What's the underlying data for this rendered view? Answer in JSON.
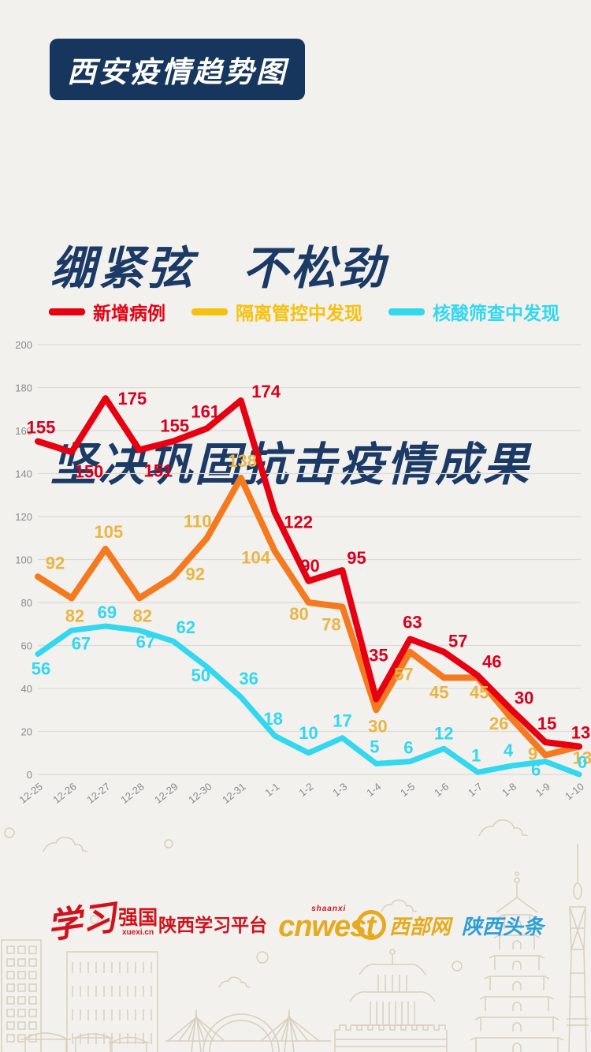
{
  "page": {
    "badge": "西安疫情趋势图",
    "heading_line1": "绷紧弦　不松劲",
    "heading_line2": "坚决巩固抗击疫情成果"
  },
  "colors": {
    "background": "#f2f1ee",
    "navy": "#17365e",
    "red": "#e60012",
    "red_label": "#d7001e",
    "orange_line": "#f5791f",
    "gold_swatch": "#f6c10e",
    "gold_label": "#e9b544",
    "cyan": "#32d7f0",
    "grid": "#dcdbd8",
    "axis_text": "#8a8a8a"
  },
  "chart_data": {
    "type": "line",
    "categories": [
      "12-25",
      "12-26",
      "12-27",
      "12-28",
      "12-29",
      "12-30",
      "12-31",
      "1-1",
      "1-2",
      "1-3",
      "1-4",
      "1-5",
      "1-6",
      "1-7",
      "1-8",
      "1-9",
      "1-10"
    ],
    "series": [
      {
        "name": "新增病例",
        "line_color": "#e60012",
        "legend_color": "#e60012",
        "label_color": "#d7001e",
        "values": [
          155,
          150,
          175,
          151,
          155,
          161,
          174,
          122,
          90,
          95,
          35,
          63,
          57,
          46,
          30,
          15,
          13
        ]
      },
      {
        "name": "隔离管控中发现",
        "line_color": "#f5791f",
        "legend_color": "#f6c10e",
        "label_color": "#e9b544",
        "values": [
          92,
          82,
          105,
          82,
          92,
          110,
          138,
          104,
          80,
          78,
          30,
          57,
          45,
          45,
          26,
          9,
          13
        ]
      },
      {
        "name": "核酸筛查中发现",
        "line_color": "#32d7f0",
        "legend_color": "#32d7f0",
        "label_color": "#32d7f0",
        "values": [
          56,
          67,
          69,
          67,
          62,
          50,
          36,
          18,
          10,
          17,
          5,
          6,
          12,
          1,
          4,
          6,
          0
        ]
      }
    ],
    "ylim": [
      0,
      200
    ],
    "ytick_step": 20,
    "grid": true,
    "legend_position": "top"
  },
  "footer": {
    "xuexi_script": "学习",
    "xuexi_bold": "强国",
    "xuexi_url": "xuexi.cn",
    "platform": "陕西学习平台",
    "cnwest_small": "shaanxi",
    "cnwest": "cnwest",
    "cnwest_site": "西部网",
    "toutiao": "陕西头条"
  }
}
